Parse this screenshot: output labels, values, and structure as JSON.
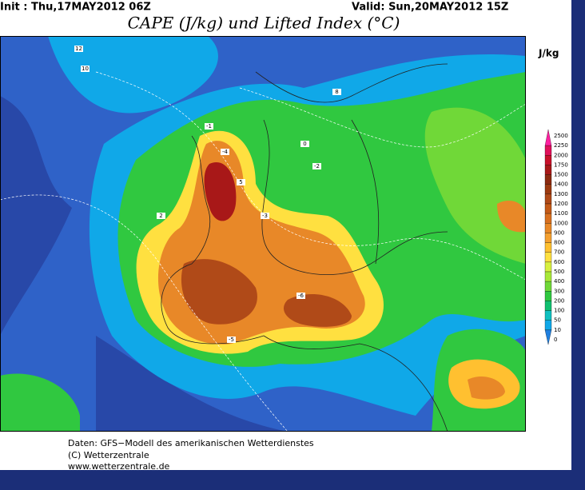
{
  "header": {
    "init": "Init : Thu,17MAY2012 06Z",
    "valid": "Valid: Sun,20MAY2012 15Z",
    "title": "CAPE (J/kg) und Lifted Index (°C)"
  },
  "legend": {
    "unit": "J/kg",
    "levels": [
      2500,
      2250,
      2000,
      1750,
      1500,
      1400,
      1300,
      1200,
      1100,
      1000,
      900,
      800,
      700,
      600,
      500,
      400,
      300,
      200,
      100,
      50,
      10,
      0
    ],
    "colors": [
      "#ff1fa0",
      "#e0105a",
      "#c8102a",
      "#a81818",
      "#8c2a10",
      "#9c3a10",
      "#b04a18",
      "#c45a18",
      "#d87020",
      "#e88828",
      "#f4a030",
      "#ffc030",
      "#ffe040",
      "#d8f040",
      "#a8e838",
      "#70d838",
      "#30c840",
      "#10c070",
      "#10c0c0",
      "#10a8e8",
      "#2080e0"
    ]
  },
  "contour_labels": [
    "12",
    "10",
    "8",
    "5",
    "2",
    "0",
    "-1",
    "-2",
    "-3",
    "-4",
    "-5",
    "-6"
  ],
  "footer": {
    "lines": [
      "Daten: GFS−Modell des amerikanischen Wetterdienstes",
      "(C) Wetterzentrale",
      "www.wetterzentrale.de"
    ]
  }
}
